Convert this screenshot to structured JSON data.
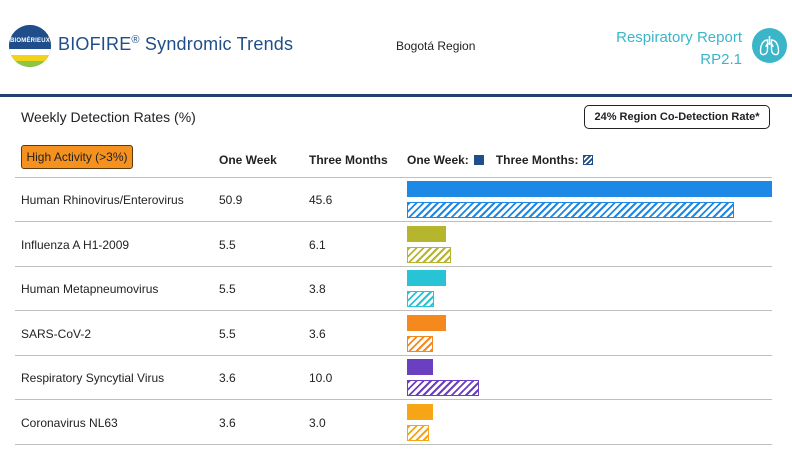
{
  "header": {
    "logo_text": "BIOMÉRIEUX",
    "app_title": "BIOFIRE",
    "app_title_reg": "®",
    "app_title_rest": " Syndromic Trends",
    "region": "Bogotá Region",
    "report_line1": "Respiratory Report",
    "report_line2": "RP2.1",
    "report_icon": "lungs-icon"
  },
  "section": {
    "title": "Weekly Detection Rates (%)",
    "codetection": "24% Region Co-Detection Rate*",
    "badge": "High Activity (>3%)"
  },
  "table": {
    "col_week": "One Week",
    "col_months": "Three Months",
    "legend_week": "One Week:",
    "legend_months": "Three Months:",
    "rows": [
      {
        "name": "Human Rhinovirus/Enterovirus",
        "week": "50.9",
        "months": "45.6",
        "color": "#1e88e5"
      },
      {
        "name": "Influenza A H1-2009",
        "week": "5.5",
        "months": "6.1",
        "color": "#b5b52e"
      },
      {
        "name": "Human Metapneumovirus",
        "week": "5.5",
        "months": "3.8",
        "color": "#29c3d6"
      },
      {
        "name": "SARS-CoV-2",
        "week": "5.5",
        "months": "3.6",
        "color": "#f5891e"
      },
      {
        "name": "Respiratory Syncytial Virus",
        "week": "3.6",
        "months": "10.0",
        "color": "#6a3fc0"
      },
      {
        "name": "Coronavirus NL63",
        "week": "3.6",
        "months": "3.0",
        "color": "#f5a515"
      }
    ]
  },
  "chart_data": {
    "type": "bar",
    "categories": [
      "Human Rhinovirus/Enterovirus",
      "Influenza A H1-2009",
      "Human Metapneumovirus",
      "SARS-CoV-2",
      "Respiratory Syncytial Virus",
      "Coronavirus NL63"
    ],
    "series": [
      {
        "name": "One Week",
        "values": [
          50.9,
          5.5,
          5.5,
          5.5,
          3.6,
          3.6
        ]
      },
      {
        "name": "Three Months",
        "values": [
          45.6,
          6.1,
          3.8,
          3.6,
          10.0,
          3.0
        ]
      }
    ],
    "xlim": [
      0,
      50.9
    ]
  }
}
